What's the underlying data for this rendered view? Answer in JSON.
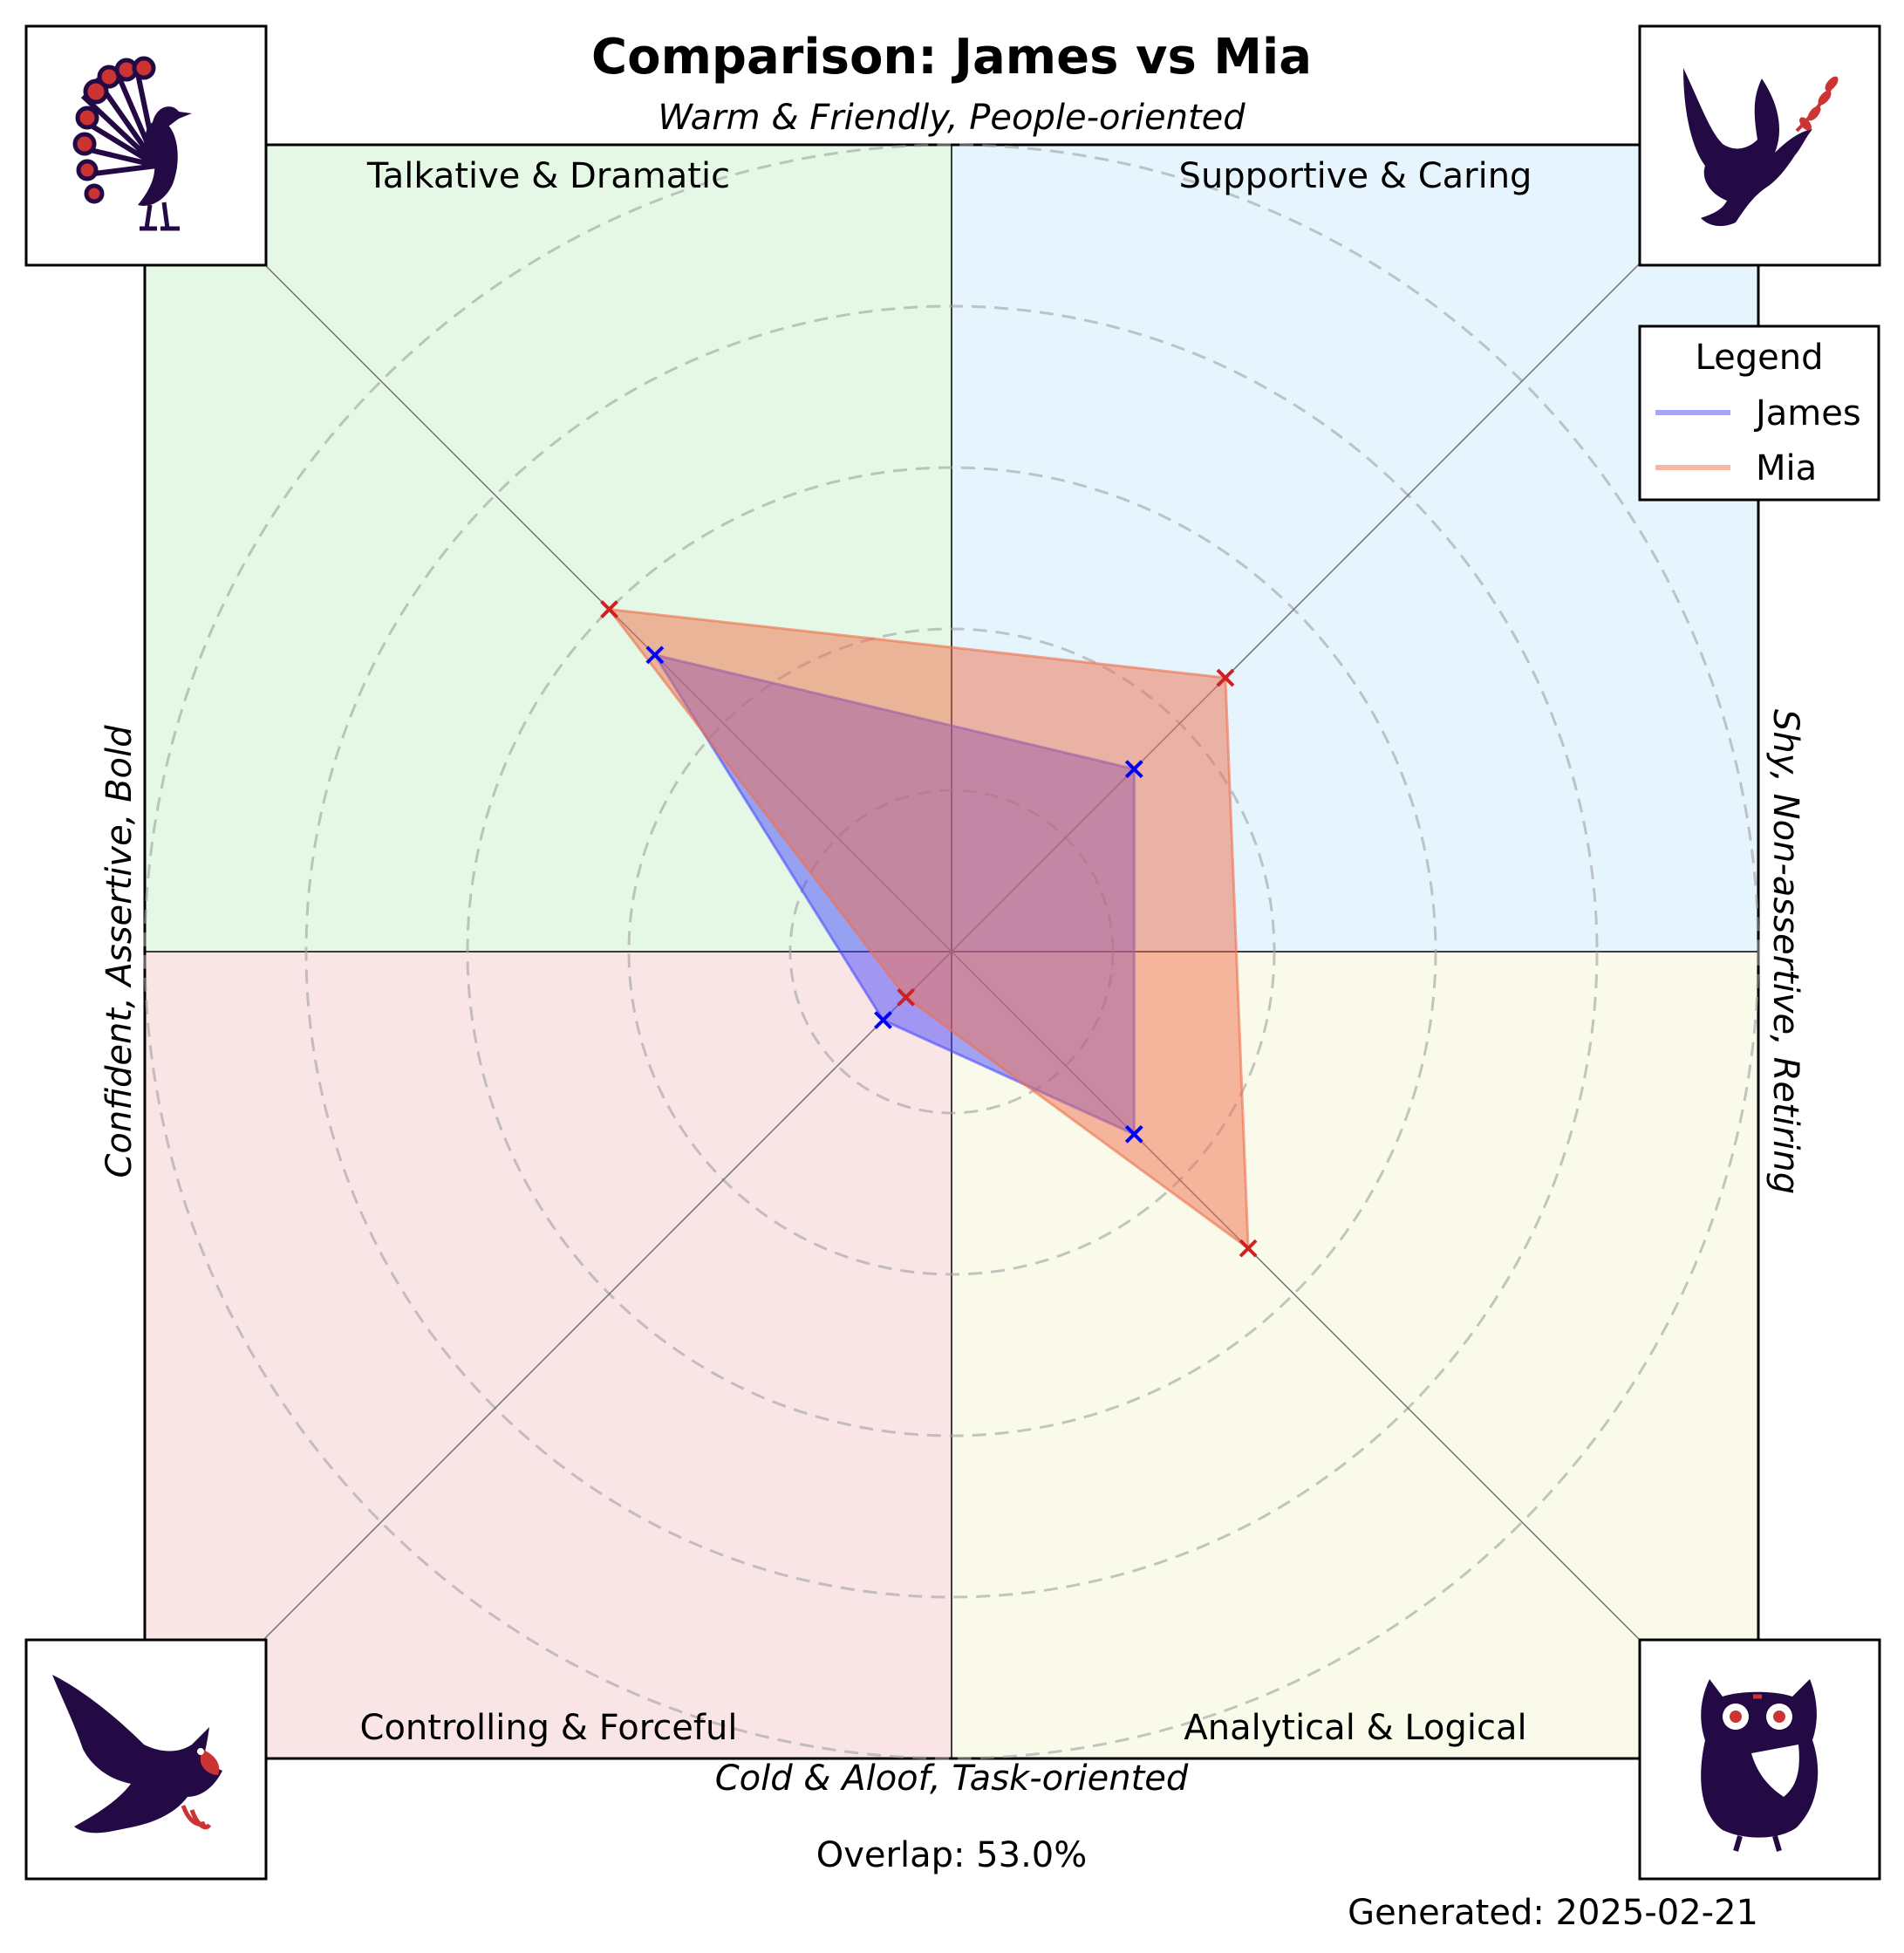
{
  "chart_data": {
    "type": "radar",
    "title": "Comparison: James vs Mia",
    "axis_labels": {
      "top": "Warm & Friendly, People-oriented",
      "bottom": "Cold & Aloof, Task-oriented",
      "left": "Confident, Assertive, Bold",
      "right": "Shy, Non-assertive, Retiring"
    },
    "quadrants": [
      {
        "name": "Talkative & Dramatic",
        "position": "top-left",
        "color": "#e5f8e5",
        "icon": "peacock-icon"
      },
      {
        "name": "Supportive & Caring",
        "position": "top-right",
        "color": "#e5f4fd",
        "icon": "dove-icon"
      },
      {
        "name": "Controlling & Forceful",
        "position": "bottom-left",
        "color": "#f9e5e6",
        "icon": "eagle-icon"
      },
      {
        "name": "Analytical & Logical",
        "position": "bottom-right",
        "color": "#fafaeb",
        "icon": "owl-icon"
      }
    ],
    "axes": [
      "Talkative & Dramatic",
      "Supportive & Caring",
      "Analytical & Logical",
      "Controlling & Forceful"
    ],
    "rlim": [
      0,
      5
    ],
    "grid": true,
    "series": [
      {
        "name": "James",
        "color": "#4a4aff",
        "values": [
          2.6,
          1.6,
          1.6,
          0.6
        ]
      },
      {
        "name": "Mia",
        "color": "#f0704e",
        "values": [
          3.0,
          2.4,
          2.6,
          0.4
        ]
      }
    ],
    "legend": {
      "title": "Legend",
      "placement": "top-right"
    },
    "overlap_text": "Overlap: 53.0%",
    "generated_text": "Generated: 2025-02-21",
    "icon_accent": "#cc3333",
    "icon_dark": "#230a44"
  }
}
